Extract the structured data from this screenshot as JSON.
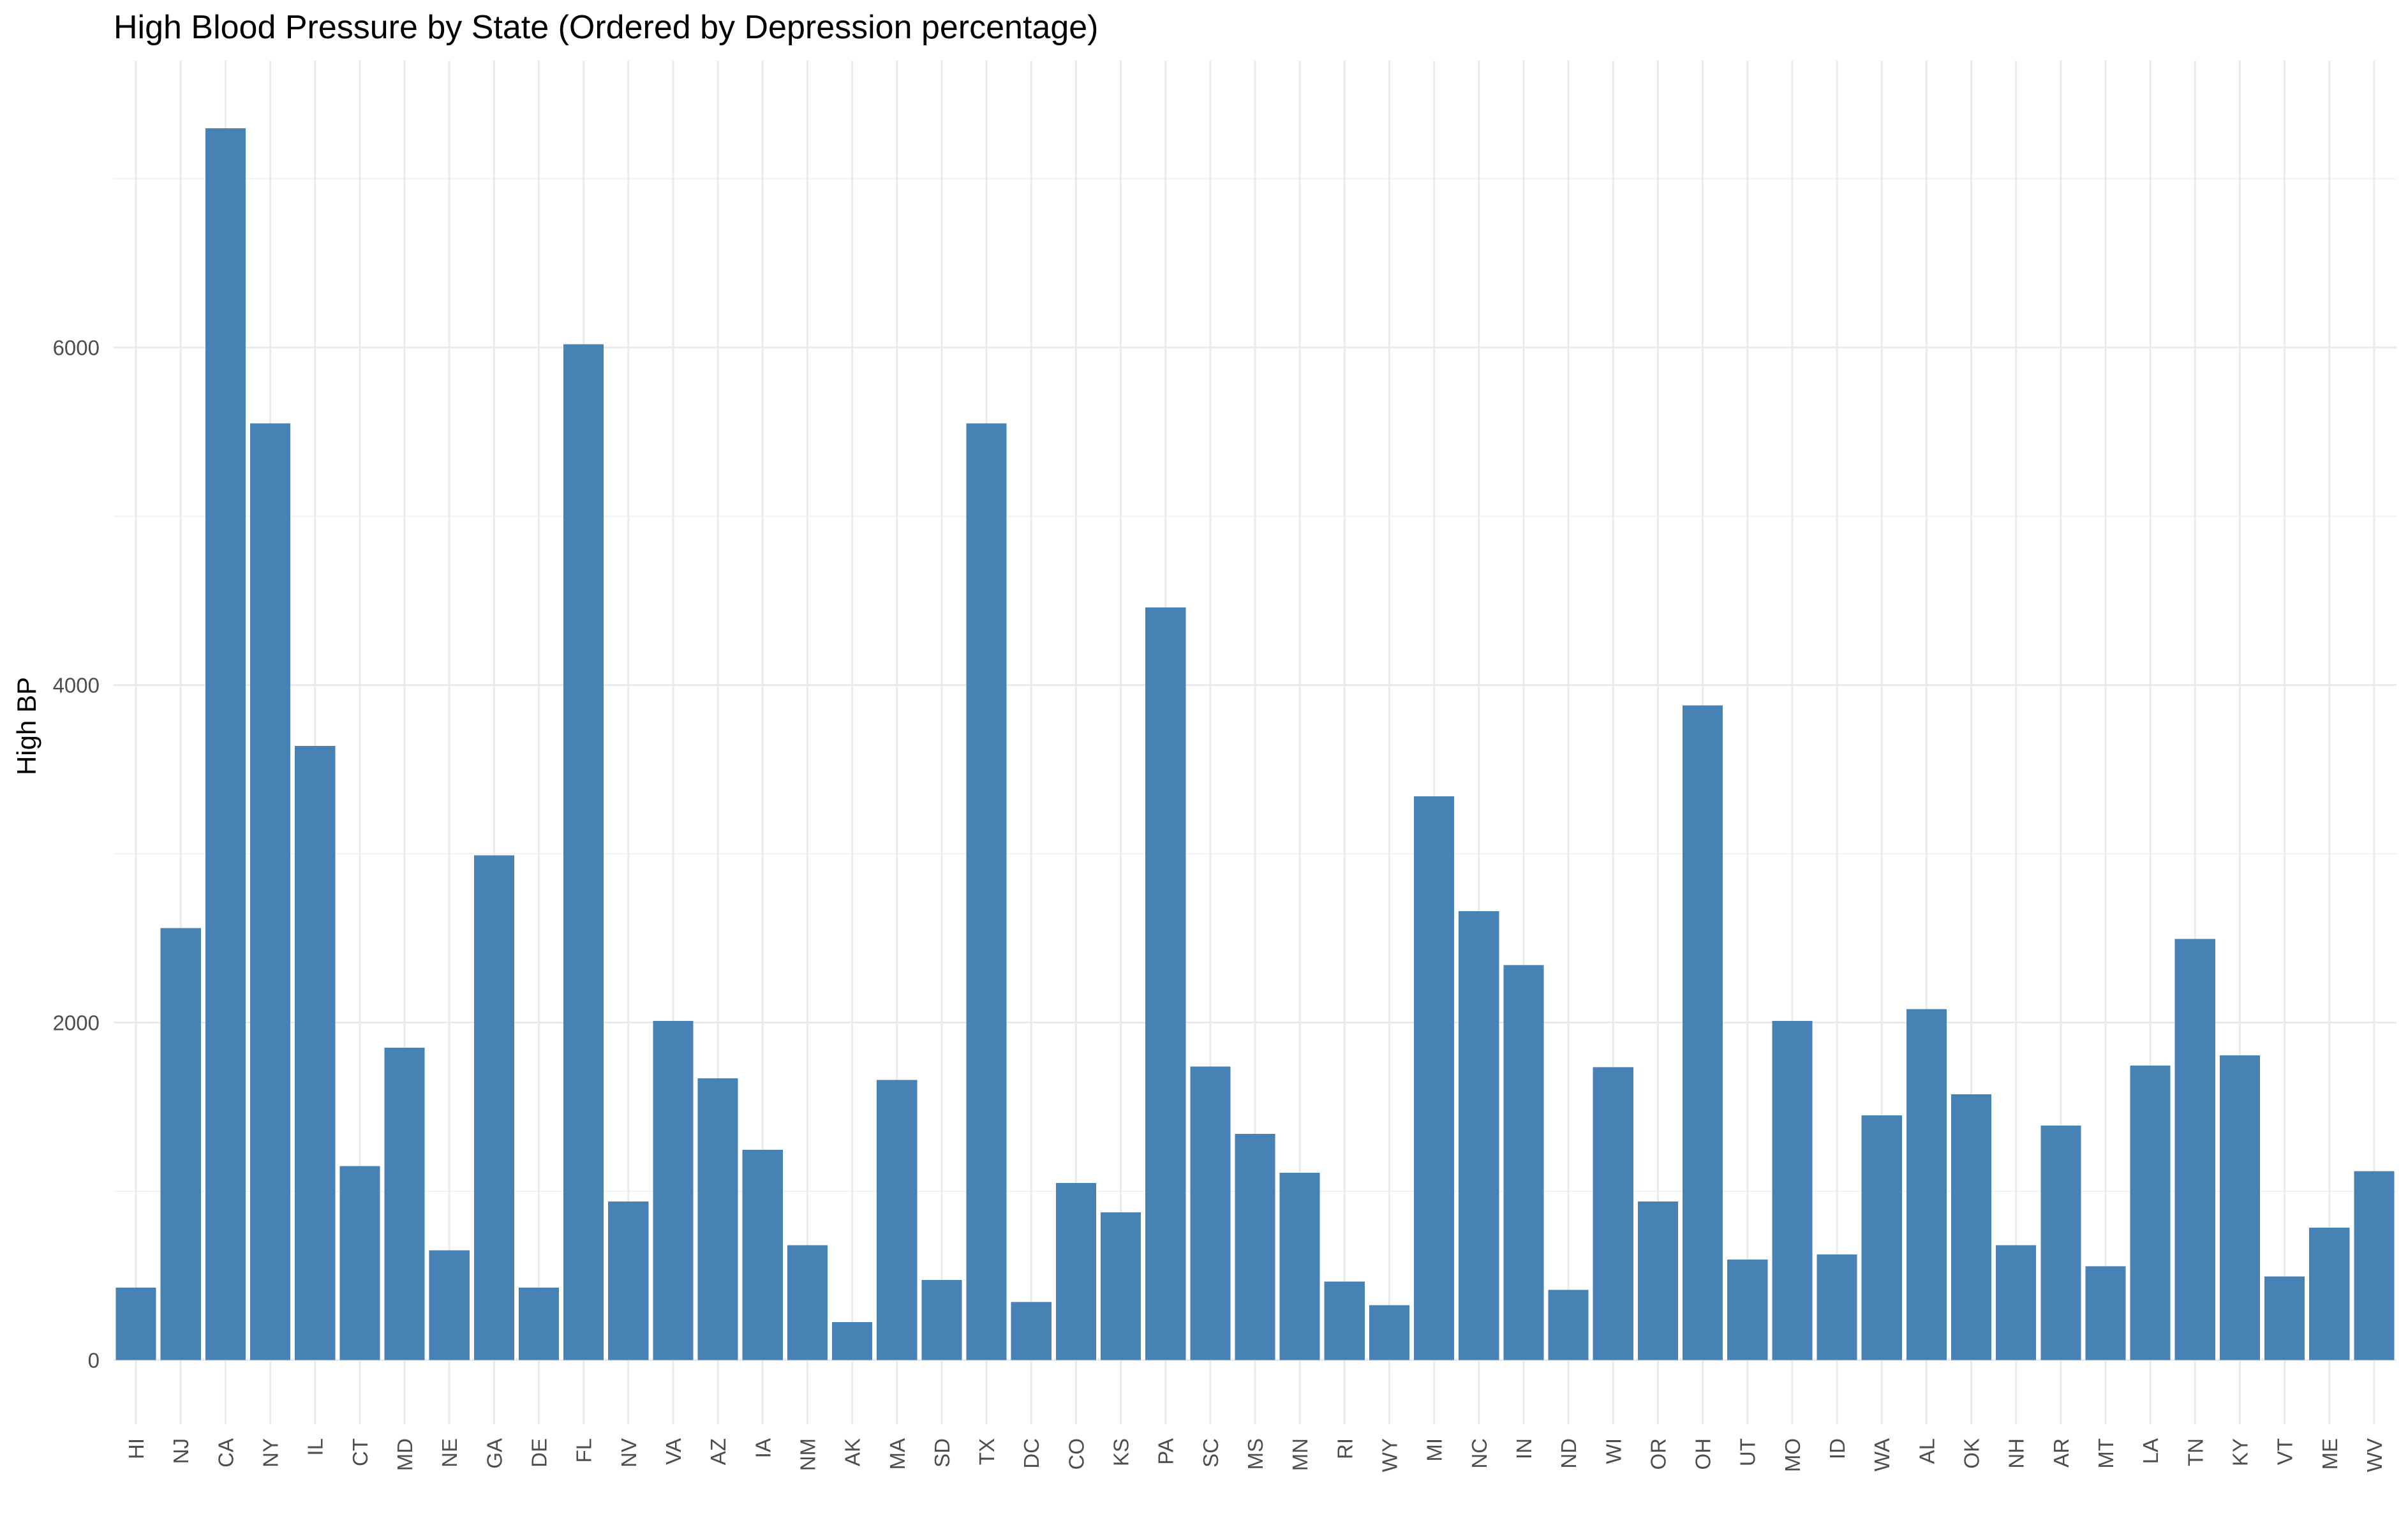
{
  "chart_data": {
    "type": "bar",
    "title": "High Blood Pressure by State (Ordered by Depression percentage)",
    "xlabel": "",
    "ylabel": "High BP",
    "categories": [
      "HI",
      "NJ",
      "CA",
      "NY",
      "IL",
      "CT",
      "MD",
      "NE",
      "GA",
      "DE",
      "FL",
      "NV",
      "VA",
      "AZ",
      "IA",
      "NM",
      "AK",
      "MA",
      "SD",
      "TX",
      "DC",
      "CO",
      "KS",
      "PA",
      "SC",
      "MS",
      "MN",
      "RI",
      "WY",
      "MI",
      "NC",
      "IN",
      "ND",
      "WI",
      "OR",
      "OH",
      "UT",
      "MO",
      "ID",
      "WA",
      "AL",
      "OK",
      "NH",
      "AR",
      "MT",
      "LA",
      "TN",
      "KY",
      "VT",
      "ME",
      "WV"
    ],
    "values": [
      430,
      2560,
      7300,
      5550,
      3640,
      1150,
      1850,
      650,
      2990,
      430,
      6020,
      940,
      2010,
      1670,
      1245,
      680,
      225,
      1660,
      475,
      5550,
      345,
      1050,
      875,
      4460,
      1740,
      1340,
      1110,
      465,
      325,
      3340,
      2660,
      2340,
      415,
      1735,
      940,
      3880,
      595,
      2010,
      625,
      1450,
      2080,
      1575,
      680,
      1390,
      555,
      1745,
      2495,
      1805,
      495,
      785,
      1120
    ],
    "yticks": [
      0,
      2000,
      4000,
      6000
    ],
    "ylim": [
      -380,
      7700
    ],
    "bar_color": "#4682b4",
    "grid": true,
    "legend": "none"
  }
}
